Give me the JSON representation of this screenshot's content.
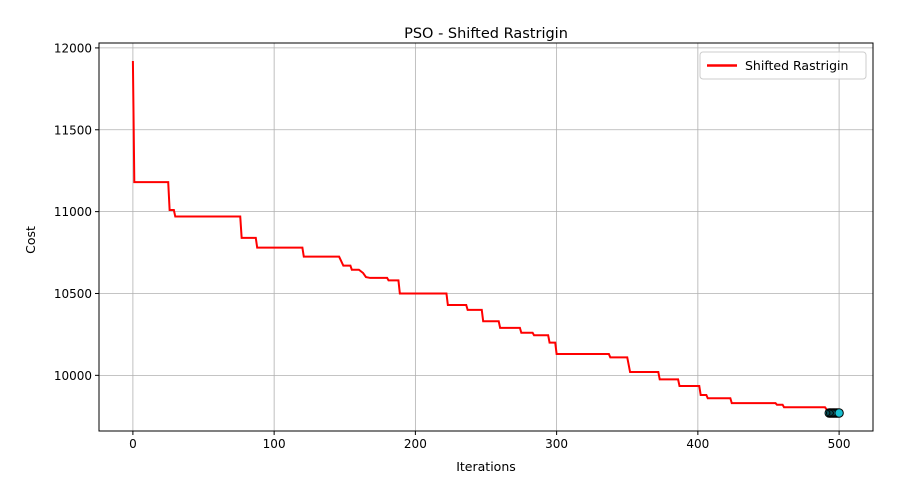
{
  "chart_data": {
    "type": "line",
    "title": "PSO - Shifted Rastrigin",
    "xlabel": "Iterations",
    "ylabel": "Cost",
    "xlim": [
      -24,
      524
    ],
    "ylim": [
      9660,
      12030
    ],
    "xticks": [
      0,
      100,
      200,
      300,
      400,
      500
    ],
    "yticks": [
      10000,
      10500,
      11000,
      11500,
      12000
    ],
    "grid": true,
    "legend": "top-right",
    "series": [
      {
        "name": "Shifted Rastrigin",
        "color": "#ff0000",
        "linewidth": 2,
        "step": [
          [
            0,
            11920
          ],
          [
            1,
            11180
          ],
          [
            25,
            11180
          ],
          [
            26,
            11010
          ],
          [
            29,
            11010
          ],
          [
            30,
            10970
          ],
          [
            76,
            10970
          ],
          [
            77,
            10840
          ],
          [
            87,
            10840
          ],
          [
            88,
            10780
          ],
          [
            120,
            10780
          ],
          [
            121,
            10725
          ],
          [
            146,
            10725
          ],
          [
            149,
            10670
          ],
          [
            154,
            10670
          ],
          [
            155,
            10645
          ],
          [
            160,
            10645
          ],
          [
            163,
            10625
          ],
          [
            165,
            10600
          ],
          [
            168,
            10595
          ],
          [
            180,
            10595
          ],
          [
            181,
            10580
          ],
          [
            188,
            10580
          ],
          [
            189,
            10500
          ],
          [
            222,
            10500
          ],
          [
            223,
            10430
          ],
          [
            236,
            10430
          ],
          [
            237,
            10400
          ],
          [
            247,
            10400
          ],
          [
            248,
            10330
          ],
          [
            259,
            10330
          ],
          [
            260,
            10290
          ],
          [
            274,
            10290
          ],
          [
            275,
            10260
          ],
          [
            283,
            10260
          ],
          [
            284,
            10245
          ],
          [
            294,
            10245
          ],
          [
            295,
            10200
          ],
          [
            299,
            10200
          ],
          [
            300,
            10130
          ],
          [
            337,
            10130
          ],
          [
            338,
            10110
          ],
          [
            350,
            10110
          ],
          [
            352,
            10020
          ],
          [
            372,
            10020
          ],
          [
            373,
            9975
          ],
          [
            386,
            9975
          ],
          [
            387,
            9935
          ],
          [
            401,
            9935
          ],
          [
            402,
            9880
          ],
          [
            406,
            9880
          ],
          [
            407,
            9860
          ],
          [
            423,
            9860
          ],
          [
            424,
            9830
          ],
          [
            455,
            9830
          ],
          [
            456,
            9820
          ],
          [
            460,
            9820
          ],
          [
            461,
            9805
          ],
          [
            490,
            9805
          ],
          [
            493,
            9770
          ],
          [
            500,
            9770
          ]
        ],
        "markers": {
          "x": [
            493,
            494,
            495,
            496,
            497,
            498,
            499,
            500
          ],
          "y": [
            9770,
            9770,
            9770,
            9770,
            9770,
            9770,
            9770,
            9770
          ],
          "fill": "#17becf",
          "edge": "#000000"
        }
      }
    ]
  }
}
